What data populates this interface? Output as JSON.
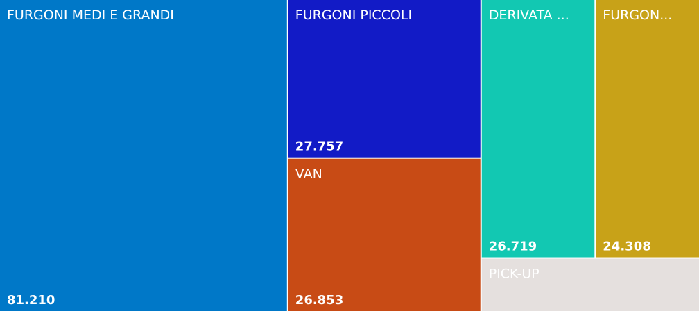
{
  "chart_data": {
    "type": "treemap",
    "categories": [
      "FURGONI MEDI E GRANDI",
      "FURGONI PICCOLI",
      "VAN",
      "DERIVATA ...",
      "FURGON...",
      "PICK-UP"
    ],
    "values": [
      81210,
      27757,
      26853,
      26719,
      24308,
      10500
    ],
    "value_labels": [
      "81.210",
      "27.757",
      "26.853",
      "26.719",
      "24.308",
      null
    ],
    "colors": [
      "#0078c8",
      "#121bc6",
      "#c84b15",
      "#12c8b2",
      "#c8a218",
      "#e5e0de"
    ]
  }
}
